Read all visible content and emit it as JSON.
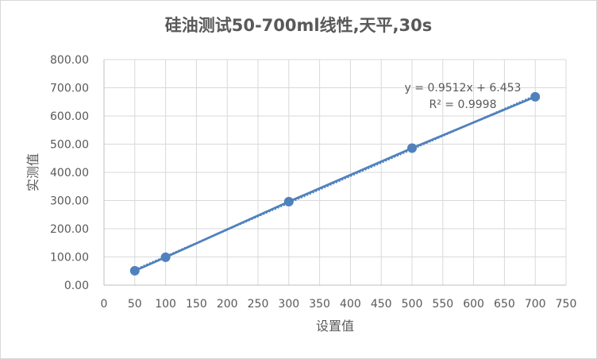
{
  "chart_data": {
    "type": "scatter",
    "title": "硅油测试50-700ml线性,天平,30s",
    "xlabel": "设置值",
    "ylabel": "实测值",
    "x": [
      50,
      100,
      300,
      500,
      700
    ],
    "series": [
      {
        "name": "实测值",
        "values": [
          51,
          99,
          296,
          486,
          668
        ],
        "color": "#4f81bd",
        "marker": "circle",
        "line": "solid"
      }
    ],
    "trendline": {
      "type": "linear",
      "slope": 0.9512,
      "intercept": 6.453,
      "equation": "y = 0.9512x + 6.453",
      "r_squared_label": "R² = 0.9998",
      "r_squared": 0.9998,
      "style": "dotted",
      "color": "#4f81bd"
    },
    "xlim": [
      0,
      750
    ],
    "ylim": [
      0,
      800
    ],
    "x_ticks": [
      "0",
      "50",
      "100",
      "150",
      "200",
      "250",
      "300",
      "350",
      "400",
      "450",
      "500",
      "550",
      "600",
      "650",
      "700",
      "750"
    ],
    "y_ticks": [
      "0.00",
      "100.00",
      "200.00",
      "300.00",
      "400.00",
      "500.00",
      "600.00",
      "700.00",
      "800.00"
    ],
    "grid": true,
    "legend": "none"
  }
}
